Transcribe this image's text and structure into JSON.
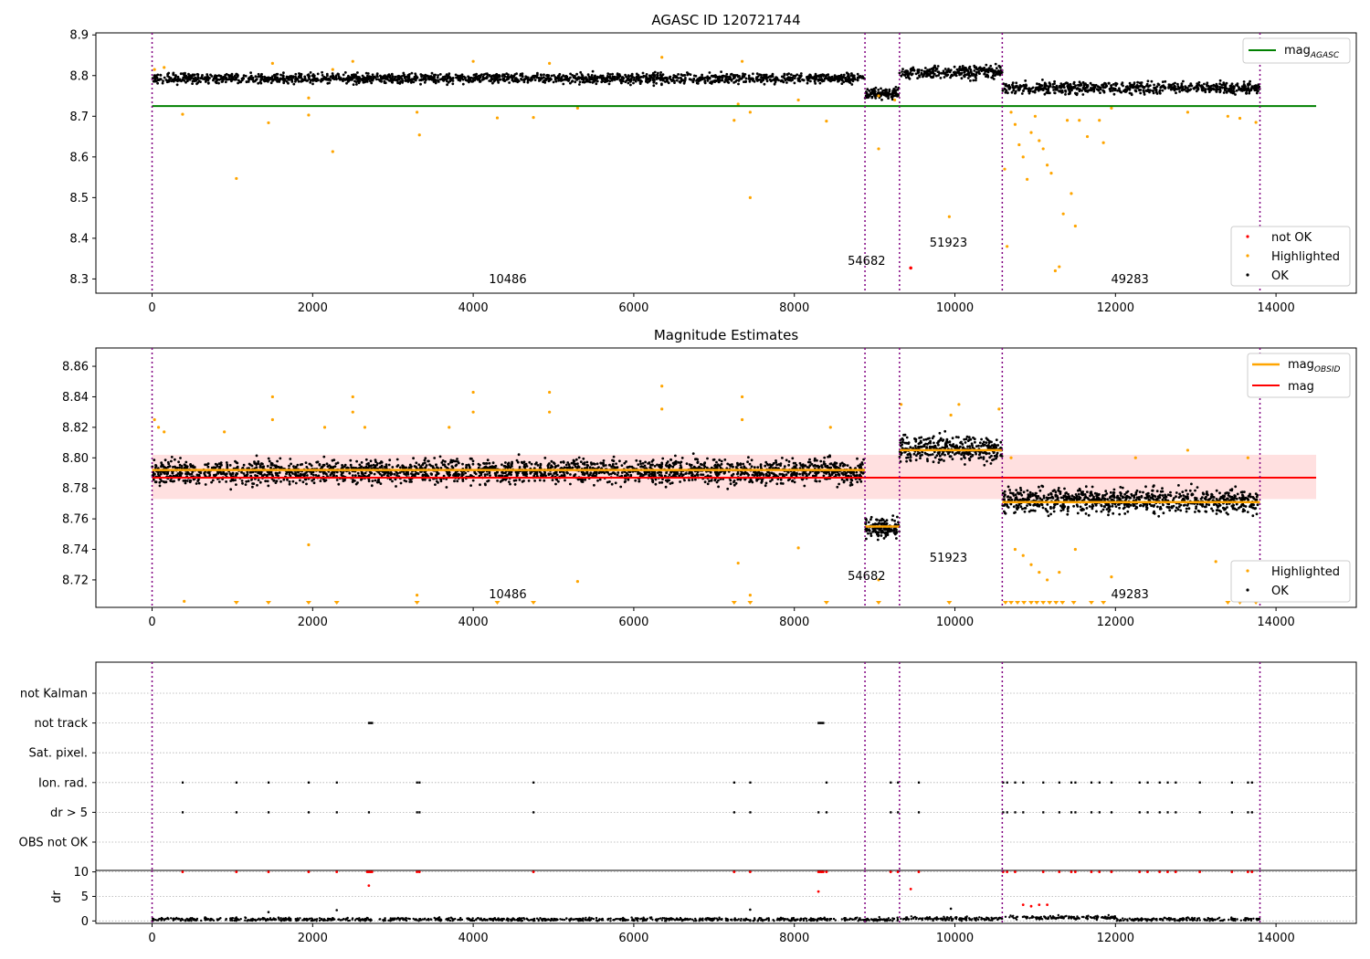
{
  "chart_data": [
    {
      "type": "scatter",
      "title": "AGASC ID 120721744",
      "xlim": [
        -700,
        15000
      ],
      "ylim": [
        8.265,
        8.905
      ],
      "xticks": [
        0,
        2000,
        4000,
        6000,
        8000,
        10000,
        12000,
        14000
      ],
      "xtick_labels": [
        "0",
        "2000",
        "4000",
        "6000",
        "8000",
        "10000",
        "12000",
        "14000"
      ],
      "yticks": [
        8.3,
        8.4,
        8.5,
        8.6,
        8.7,
        8.8,
        8.9
      ],
      "ytick_labels": [
        "8.3",
        "8.4",
        "8.5",
        "8.6",
        "8.7",
        "8.8",
        "8.9"
      ],
      "obs_boundaries": [
        0,
        8880,
        9310,
        10590,
        13800
      ],
      "obsid_labels": [
        {
          "x": 4430,
          "y": 8.29,
          "label": "10486"
        },
        {
          "x": 8900,
          "y": 8.335,
          "label": "54682"
        },
        {
          "x": 9920,
          "y": 8.38,
          "label": "51923"
        },
        {
          "x": 12180,
          "y": 8.29,
          "label": "49283"
        }
      ],
      "mag_agasc": 8.725,
      "ok_segments": [
        {
          "x0": 0,
          "x1": 8880,
          "center": 8.793,
          "spread": 0.018
        },
        {
          "x0": 8880,
          "x1": 9310,
          "center": 8.755,
          "spread": 0.022
        },
        {
          "x0": 9310,
          "x1": 10590,
          "center": 8.808,
          "spread": 0.022
        },
        {
          "x0": 10590,
          "x1": 13800,
          "center": 8.77,
          "spread": 0.022
        }
      ],
      "highlighted_points": [
        [
          30,
          8.815
        ],
        [
          150,
          8.82
        ],
        [
          380,
          8.705
        ],
        [
          1050,
          8.547
        ],
        [
          1450,
          8.684
        ],
        [
          1500,
          8.83
        ],
        [
          1950,
          8.703
        ],
        [
          1950,
          8.745
        ],
        [
          2250,
          8.613
        ],
        [
          2250,
          8.815
        ],
        [
          2500,
          8.835
        ],
        [
          3300,
          8.71
        ],
        [
          3330,
          8.654
        ],
        [
          4000,
          8.835
        ],
        [
          4300,
          8.696
        ],
        [
          4750,
          8.697
        ],
        [
          4950,
          8.83
        ],
        [
          5300,
          8.72
        ],
        [
          6350,
          8.845
        ],
        [
          7250,
          8.69
        ],
        [
          7300,
          8.73
        ],
        [
          7350,
          8.835
        ],
        [
          7450,
          8.5
        ],
        [
          7450,
          8.71
        ],
        [
          8050,
          8.74
        ],
        [
          8400,
          8.688
        ],
        [
          9050,
          8.62
        ],
        [
          9050,
          8.75
        ],
        [
          9250,
          8.74
        ],
        [
          9930,
          8.453
        ],
        [
          10620,
          8.57
        ],
        [
          10650,
          8.38
        ],
        [
          10700,
          8.71
        ],
        [
          10750,
          8.68
        ],
        [
          10800,
          8.63
        ],
        [
          10850,
          8.6
        ],
        [
          10900,
          8.545
        ],
        [
          10950,
          8.66
        ],
        [
          11000,
          8.7
        ],
        [
          11050,
          8.64
        ],
        [
          11100,
          8.62
        ],
        [
          11150,
          8.58
        ],
        [
          11200,
          8.56
        ],
        [
          11250,
          8.32
        ],
        [
          11300,
          8.33
        ],
        [
          11350,
          8.46
        ],
        [
          11400,
          8.69
        ],
        [
          11450,
          8.51
        ],
        [
          11500,
          8.43
        ],
        [
          11550,
          8.69
        ],
        [
          11650,
          8.65
        ],
        [
          11800,
          8.69
        ],
        [
          11850,
          8.635
        ],
        [
          11950,
          8.72
        ],
        [
          12900,
          8.71
        ],
        [
          13400,
          8.7
        ],
        [
          13550,
          8.695
        ],
        [
          13750,
          8.685
        ]
      ],
      "not_ok_points": [
        [
          9450,
          8.327
        ]
      ],
      "legend": [
        "mag_AGASC"
      ],
      "legend2": [
        "not OK",
        "Highlighted",
        "OK"
      ]
    },
    {
      "type": "scatter",
      "title": "Magnitude Estimates",
      "xlim": [
        -700,
        15000
      ],
      "ylim": [
        8.702,
        8.872
      ],
      "xticks": [
        0,
        2000,
        4000,
        6000,
        8000,
        10000,
        12000,
        14000
      ],
      "xtick_labels": [
        "0",
        "2000",
        "4000",
        "6000",
        "8000",
        "10000",
        "12000",
        "14000"
      ],
      "yticks": [
        8.72,
        8.74,
        8.76,
        8.78,
        8.8,
        8.82,
        8.84,
        8.86
      ],
      "ytick_labels": [
        "8.72",
        "8.74",
        "8.76",
        "8.78",
        "8.80",
        "8.82",
        "8.84",
        "8.86"
      ],
      "obs_boundaries": [
        0,
        8880,
        9310,
        10590,
        13800
      ],
      "obsid_labels": [
        {
          "x": 4430,
          "y": 8.708,
          "label": "10486"
        },
        {
          "x": 8900,
          "y": 8.72,
          "label": "54682"
        },
        {
          "x": 9920,
          "y": 8.732,
          "label": "51923"
        },
        {
          "x": 12180,
          "y": 8.708,
          "label": "49283"
        }
      ],
      "mag": 8.787,
      "mag_band": [
        8.773,
        8.802
      ],
      "mag_obsid_segments": [
        {
          "x0": 0,
          "x1": 8880,
          "y": 8.792
        },
        {
          "x0": 8880,
          "x1": 9310,
          "y": 8.755
        },
        {
          "x0": 9310,
          "x1": 10590,
          "y": 8.805
        },
        {
          "x0": 10590,
          "x1": 13800,
          "y": 8.771
        }
      ],
      "ok_segments": [
        {
          "x0": 0,
          "x1": 8880,
          "center": 8.791,
          "spread": 0.012
        },
        {
          "x0": 8880,
          "x1": 9310,
          "center": 8.754,
          "spread": 0.01
        },
        {
          "x0": 9310,
          "x1": 10590,
          "center": 8.806,
          "spread": 0.012
        },
        {
          "x0": 10590,
          "x1": 13800,
          "center": 8.772,
          "spread": 0.012
        }
      ],
      "highlighted_points": [
        [
          30,
          8.825
        ],
        [
          80,
          8.82
        ],
        [
          150,
          8.817
        ],
        [
          400,
          8.706
        ],
        [
          900,
          8.817
        ],
        [
          1500,
          8.84
        ],
        [
          1500,
          8.825
        ],
        [
          1950,
          8.743
        ],
        [
          2150,
          8.82
        ],
        [
          2500,
          8.84
        ],
        [
          2500,
          8.83
        ],
        [
          2650,
          8.82
        ],
        [
          3300,
          8.71
        ],
        [
          3700,
          8.82
        ],
        [
          4000,
          8.843
        ],
        [
          4000,
          8.83
        ],
        [
          4950,
          8.843
        ],
        [
          4950,
          8.83
        ],
        [
          5300,
          8.719
        ],
        [
          6350,
          8.847
        ],
        [
          6350,
          8.832
        ],
        [
          7300,
          8.731
        ],
        [
          7350,
          8.84
        ],
        [
          7350,
          8.825
        ],
        [
          7450,
          8.71
        ],
        [
          8050,
          8.741
        ],
        [
          8450,
          8.82
        ],
        [
          9050,
          8.72
        ],
        [
          9330,
          8.835
        ],
        [
          9950,
          8.828
        ],
        [
          10050,
          8.835
        ],
        [
          10550,
          8.832
        ],
        [
          10700,
          8.8
        ],
        [
          10750,
          8.74
        ],
        [
          10850,
          8.736
        ],
        [
          10950,
          8.73
        ],
        [
          11050,
          8.725
        ],
        [
          11150,
          8.72
        ],
        [
          11300,
          8.725
        ],
        [
          11500,
          8.74
        ],
        [
          11950,
          8.722
        ],
        [
          12250,
          8.8
        ],
        [
          12900,
          8.805
        ],
        [
          13250,
          8.732
        ],
        [
          13650,
          8.8
        ]
      ],
      "low_markers": [
        1050,
        1450,
        1950,
        2300,
        3300,
        4300,
        4750,
        7250,
        7450,
        8400,
        9050,
        9930,
        10630,
        10700,
        10780,
        10860,
        10950,
        11020,
        11100,
        11180,
        11260,
        11340,
        11480,
        11700,
        11850,
        13400,
        13550,
        13750
      ],
      "legend": [
        "mag_OBSID",
        "mag"
      ],
      "legend2": [
        "Highlighted",
        "OK"
      ]
    },
    {
      "type": "scatter",
      "title": "",
      "xlim": [
        -700,
        15000
      ],
      "categories": [
        "not Kalman",
        "not track",
        "Sat. pixel.",
        "Ion. rad.",
        "dr > 5",
        "OBS not OK"
      ],
      "obs_boundaries": [
        0,
        8880,
        9310,
        10590,
        13800
      ],
      "flags": {
        "not track": [
          2700,
          2720,
          2740,
          8300,
          8320,
          8340,
          8360
        ],
        "Ion. rad.": [
          380,
          1050,
          1450,
          1950,
          2300,
          3300,
          3330,
          4750,
          7250,
          7450,
          8400,
          9200,
          9290,
          9550,
          10600,
          10650,
          10750,
          10850,
          11100,
          11300,
          11450,
          11500,
          11700,
          11800,
          11950,
          12300,
          12400,
          12550,
          12650,
          12750,
          13050,
          13450,
          13650,
          13700
        ],
        "dr > 5": [
          380,
          1050,
          1450,
          1950,
          2300,
          2700,
          3300,
          3330,
          4750,
          7250,
          7450,
          8300,
          8400,
          9200,
          9290,
          9550,
          10600,
          10650,
          10750,
          10850,
          11100,
          11300,
          11450,
          11500,
          11700,
          11800,
          11950,
          12300,
          12400,
          12550,
          12650,
          12750,
          13050,
          13450,
          13650,
          13700
        ]
      }
    },
    {
      "type": "scatter",
      "title": "",
      "ylabel": "dr",
      "xlim": [
        -700,
        15000
      ],
      "ylim": [
        -0.5,
        10.3
      ],
      "xticks": [
        0,
        2000,
        4000,
        6000,
        8000,
        10000,
        12000,
        14000
      ],
      "xtick_labels": [
        "0",
        "2000",
        "4000",
        "6000",
        "8000",
        "10000",
        "12000",
        "14000"
      ],
      "yticks": [
        0,
        5,
        10
      ],
      "ytick_labels": [
        "0",
        "5",
        "10"
      ],
      "obs_boundaries": [
        0,
        8880,
        9310,
        10590,
        13800
      ],
      "red_points": [
        [
          380,
          10
        ],
        [
          1050,
          10
        ],
        [
          1450,
          10
        ],
        [
          1950,
          10
        ],
        [
          2300,
          10
        ],
        [
          2680,
          10
        ],
        [
          2700,
          10
        ],
        [
          2720,
          10
        ],
        [
          2740,
          10
        ],
        [
          2700,
          7.2
        ],
        [
          3300,
          10
        ],
        [
          3330,
          10
        ],
        [
          4750,
          10
        ],
        [
          7250,
          10
        ],
        [
          7450,
          10
        ],
        [
          8300,
          10
        ],
        [
          8320,
          10
        ],
        [
          8340,
          10
        ],
        [
          8360,
          10
        ],
        [
          8300,
          6
        ],
        [
          8400,
          10
        ],
        [
          9200,
          10
        ],
        [
          9290,
          10
        ],
        [
          9550,
          10
        ],
        [
          9450,
          6.5
        ],
        [
          10600,
          10
        ],
        [
          10650,
          10
        ],
        [
          10750,
          10
        ],
        [
          10850,
          3.3
        ],
        [
          10950,
          3
        ],
        [
          11050,
          3.3
        ],
        [
          11150,
          3.3
        ],
        [
          11100,
          10
        ],
        [
          11300,
          10
        ],
        [
          11450,
          10
        ],
        [
          11500,
          10
        ],
        [
          11700,
          10
        ],
        [
          11800,
          10
        ],
        [
          11950,
          10
        ],
        [
          12300,
          10
        ],
        [
          12400,
          10
        ],
        [
          12550,
          10
        ],
        [
          12650,
          10
        ],
        [
          12750,
          10
        ],
        [
          13050,
          10
        ],
        [
          13450,
          10
        ],
        [
          13650,
          10
        ],
        [
          13700,
          10
        ]
      ],
      "black_outliers": [
        [
          1450,
          1.8
        ],
        [
          2300,
          2.2
        ],
        [
          7450,
          2.3
        ],
        [
          9950,
          2.5
        ]
      ]
    }
  ]
}
